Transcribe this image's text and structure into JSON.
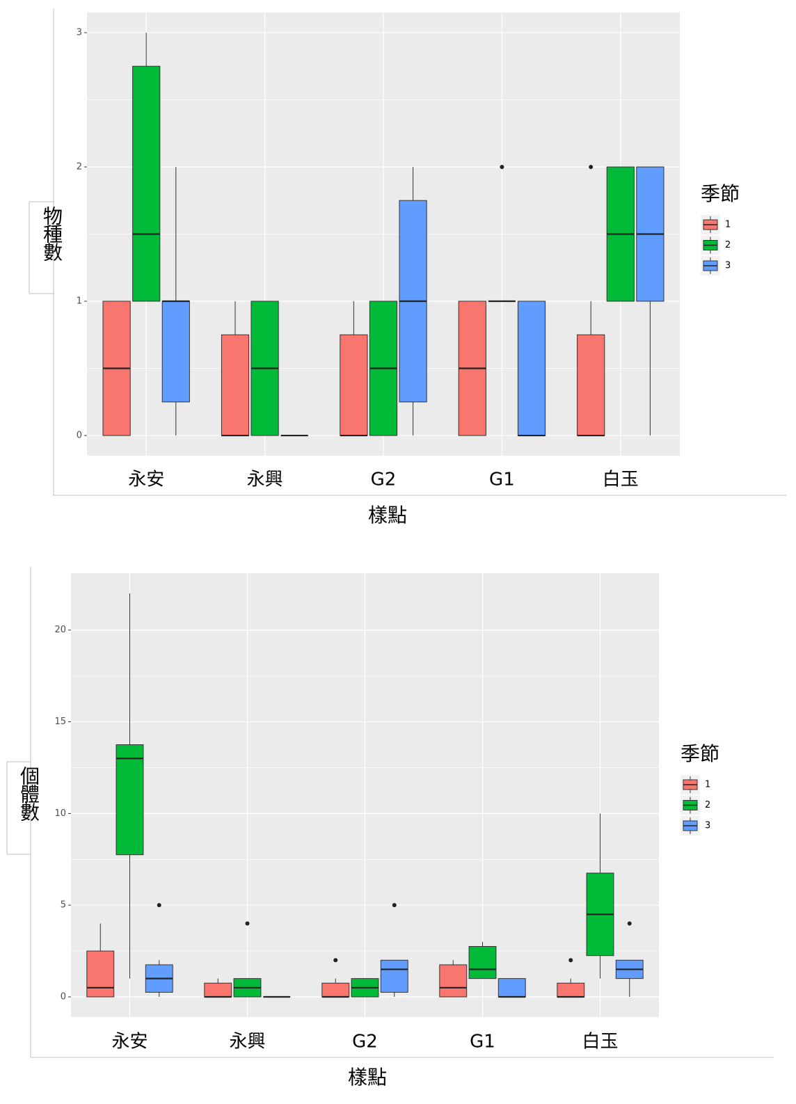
{
  "chart_data": [
    {
      "type": "boxplot",
      "y_label": "物種數",
      "x_label": "樣點",
      "legend_title": "季節",
      "categories": [
        "永安",
        "永興",
        "G2",
        "G1",
        "白玉"
      ],
      "ylim": [
        -0.15,
        3.15
      ],
      "yticks": [
        0,
        1,
        2,
        3
      ],
      "grid": true,
      "series": [
        {
          "name": "1",
          "color": "#F8766D",
          "values": [
            {
              "low": 0,
              "q1": 0,
              "median": 0.5,
              "q3": 1,
              "high": 1
            },
            {
              "low": 0,
              "q1": 0,
              "median": 0,
              "q3": 0.75,
              "high": 1
            },
            {
              "low": 0,
              "q1": 0,
              "median": 0,
              "q3": 0.75,
              "high": 1
            },
            {
              "low": 0,
              "q1": 0,
              "median": 0.5,
              "q3": 1,
              "high": 1
            },
            {
              "low": 0,
              "q1": 0,
              "median": 0,
              "q3": 0.75,
              "high": 1,
              "outliers": [
                2
              ]
            }
          ]
        },
        {
          "name": "2",
          "color": "#00BA38",
          "values": [
            {
              "low": 1,
              "q1": 1,
              "median": 1.5,
              "q3": 2.75,
              "high": 3
            },
            {
              "low": 0,
              "q1": 0,
              "median": 0.5,
              "q3": 1,
              "high": 1
            },
            {
              "low": 0,
              "q1": 0,
              "median": 0.5,
              "q3": 1,
              "high": 1
            },
            {
              "low": 1,
              "q1": 1,
              "median": 1,
              "q3": 1,
              "high": 1,
              "outliers": [
                2
              ]
            },
            {
              "low": 1,
              "q1": 1,
              "median": 1.5,
              "q3": 2,
              "high": 2
            }
          ]
        },
        {
          "name": "3",
          "color": "#619CFF",
          "values": [
            {
              "low": 0,
              "q1": 0.25,
              "median": 1,
              "q3": 1,
              "high": 2
            },
            {
              "low": 0,
              "q1": 0,
              "median": 0,
              "q3": 0,
              "high": 0
            },
            {
              "low": 0,
              "q1": 0.25,
              "median": 1,
              "q3": 1.75,
              "high": 2
            },
            {
              "low": 0,
              "q1": 0,
              "median": 0,
              "q3": 1,
              "high": 1
            },
            {
              "low": 0,
              "q1": 1,
              "median": 1.5,
              "q3": 2,
              "high": 2
            }
          ]
        }
      ]
    },
    {
      "type": "boxplot",
      "y_label": "個體數",
      "x_label": "樣點",
      "legend_title": "季節",
      "categories": [
        "永安",
        "永興",
        "G2",
        "G1",
        "白玉"
      ],
      "ylim": [
        -1.1,
        23.1
      ],
      "yticks": [
        0,
        5,
        10,
        15,
        20
      ],
      "grid": true,
      "series": [
        {
          "name": "1",
          "color": "#F8766D",
          "values": [
            {
              "low": 0,
              "q1": 0,
              "median": 0.5,
              "q3": 2.5,
              "high": 4
            },
            {
              "low": 0,
              "q1": 0,
              "median": 0,
              "q3": 0.75,
              "high": 1
            },
            {
              "low": 0,
              "q1": 0,
              "median": 0,
              "q3": 0.75,
              "high": 1,
              "outliers": [
                2
              ]
            },
            {
              "low": 0,
              "q1": 0,
              "median": 0.5,
              "q3": 1.75,
              "high": 2
            },
            {
              "low": 0,
              "q1": 0,
              "median": 0,
              "q3": 0.75,
              "high": 1,
              "outliers": [
                2
              ]
            }
          ]
        },
        {
          "name": "2",
          "color": "#00BA38",
          "values": [
            {
              "low": 1,
              "q1": 7.75,
              "median": 13,
              "q3": 13.75,
              "high": 22
            },
            {
              "low": 0,
              "q1": 0,
              "median": 0.5,
              "q3": 1,
              "high": 1,
              "outliers": [
                4
              ]
            },
            {
              "low": 0,
              "q1": 0,
              "median": 0.5,
              "q3": 1,
              "high": 1
            },
            {
              "low": 1,
              "q1": 1,
              "median": 1.5,
              "q3": 2.75,
              "high": 3
            },
            {
              "low": 1,
              "q1": 2.25,
              "median": 4.5,
              "q3": 6.75,
              "high": 10
            }
          ]
        },
        {
          "name": "3",
          "color": "#619CFF",
          "values": [
            {
              "low": 0,
              "q1": 0.25,
              "median": 1,
              "q3": 1.75,
              "high": 2,
              "outliers": [
                5
              ]
            },
            {
              "low": 0,
              "q1": 0,
              "median": 0,
              "q3": 0,
              "high": 0
            },
            {
              "low": 0,
              "q1": 0.25,
              "median": 1.5,
              "q3": 2,
              "high": 2,
              "outliers": [
                5
              ]
            },
            {
              "low": 0,
              "q1": 0,
              "median": 0,
              "q3": 1,
              "high": 1
            },
            {
              "low": 0,
              "q1": 1,
              "median": 1.5,
              "q3": 2,
              "high": 2,
              "outliers": [
                4
              ]
            }
          ]
        }
      ]
    }
  ]
}
